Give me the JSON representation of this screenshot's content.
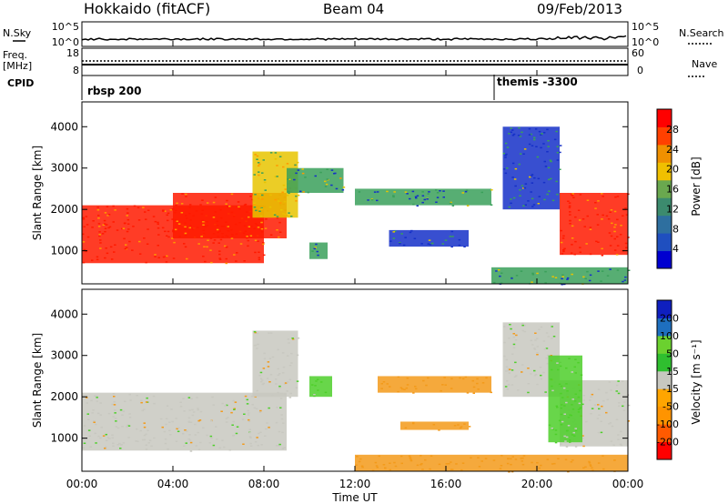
{
  "header": {
    "station": "Hokkaido (fitACF)",
    "beam": "Beam 04",
    "date": "09/Feb/2013"
  },
  "summary_panel": {
    "left_labels": {
      "nsky": "N.Sky",
      "freq": "Freq.",
      "freq_unit": "[MHz]",
      "cpid": "CPID"
    },
    "right_labels": {
      "nsearch": "N.Search",
      "nave": "Nave"
    },
    "left_ticks_top": [
      "10^5",
      "10^0"
    ],
    "left_ticks_freq": [
      "18",
      "8"
    ],
    "right_ticks_top": [
      "10^5",
      "10^0"
    ],
    "right_ticks_nave": [
      "60",
      "0"
    ],
    "cpid_segments": [
      {
        "label": "rbsp 200",
        "start_hour": 0.0
      },
      {
        "label": "themis -3300",
        "start_hour": 18.1
      }
    ]
  },
  "colorbars": {
    "power": {
      "label": "Power [dB]",
      "ticks": [
        "28",
        "24",
        "20",
        "16",
        "12",
        "8",
        "4"
      ],
      "colors": [
        "#0000d0",
        "#1f4fbf",
        "#2e6f9f",
        "#3c8b6e",
        "#6aa84f",
        "#f0c000",
        "#f09000",
        "#ff4000",
        "#ff0000"
      ]
    },
    "velocity": {
      "label": "Velocity [m s⁻¹]",
      "ticks": [
        "200",
        "100",
        "50",
        "15",
        "-15",
        "-50",
        "-100",
        "-200"
      ],
      "colors": [
        "#ff0000",
        "#ff5a00",
        "#ff9400",
        "#ffa500",
        "#c8c8c0",
        "#2fbf2f",
        "#6bd12f",
        "#1e6fbf",
        "#0f1fbf"
      ]
    }
  },
  "colors": {
    "power_red": "#ff1a00",
    "power_orange": "#ff9a00",
    "power_yellow": "#e8c400",
    "power_green": "#3aa05a",
    "power_blue": "#1530c8",
    "vel_grey": "#c8c8c0",
    "vel_orange": "#f39a1a",
    "vel_green": "#4ecf2a",
    "vel_blue": "#2040c0"
  },
  "chart_data": [
    {
      "type": "heatmap",
      "title": "",
      "xlabel": "",
      "ylabel": "Slant Range [km]",
      "xlim": [
        0,
        24
      ],
      "ylim": [
        200,
        4600
      ],
      "x_ticks": [],
      "y_ticks": [
        "1000",
        "2000",
        "3000",
        "4000"
      ],
      "quantity": "Power [dB]",
      "regions": [
        {
          "t0": 0.0,
          "t1": 8.0,
          "r0": 700,
          "r1": 2100,
          "value": 28
        },
        {
          "t0": 4.0,
          "t1": 9.0,
          "r0": 1300,
          "r1": 2400,
          "value": 26
        },
        {
          "t0": 7.5,
          "t1": 9.5,
          "r0": 1800,
          "r1": 3400,
          "value": 16
        },
        {
          "t0": 9.0,
          "t1": 11.5,
          "r0": 2400,
          "r1": 3000,
          "value": 12
        },
        {
          "t0": 10.0,
          "t1": 10.8,
          "r0": 800,
          "r1": 1200,
          "value": 10
        },
        {
          "t0": 12.0,
          "t1": 18.0,
          "r0": 2100,
          "r1": 2500,
          "value": 10
        },
        {
          "t0": 13.5,
          "t1": 17.0,
          "r0": 1100,
          "r1": 1500,
          "value": 8
        },
        {
          "t0": 18.5,
          "t1": 21.0,
          "r0": 2000,
          "r1": 4000,
          "value": 8
        },
        {
          "t0": 21.0,
          "t1": 24.0,
          "r0": 900,
          "r1": 2400,
          "value": 28
        },
        {
          "t0": 18.0,
          "t1": 24.0,
          "r0": 200,
          "r1": 600,
          "value": 10
        }
      ]
    },
    {
      "type": "heatmap",
      "title": "",
      "xlabel": "Time UT",
      "ylabel": "Slant Range [km]",
      "xlim": [
        0,
        24
      ],
      "ylim": [
        200,
        4600
      ],
      "x_ticks": [
        "00:00",
        "04:00",
        "08:00",
        "12:00",
        "16:00",
        "20:00",
        "00:00"
      ],
      "y_ticks": [
        "1000",
        "2000",
        "3000",
        "4000"
      ],
      "quantity": "Velocity [m s⁻¹]",
      "regions": [
        {
          "t0": 0.0,
          "t1": 9.0,
          "r0": 700,
          "r1": 2100,
          "value": 0
        },
        {
          "t0": 7.5,
          "t1": 9.5,
          "r0": 2000,
          "r1": 3600,
          "value": 0
        },
        {
          "t0": 10.0,
          "t1": 11.0,
          "r0": 2000,
          "r1": 2500,
          "value": 30
        },
        {
          "t0": 13.0,
          "t1": 18.0,
          "r0": 2100,
          "r1": 2500,
          "value": -60
        },
        {
          "t0": 14.0,
          "t1": 17.0,
          "r0": 1200,
          "r1": 1400,
          "value": -60
        },
        {
          "t0": 18.5,
          "t1": 21.0,
          "r0": 2000,
          "r1": 3800,
          "value": 0
        },
        {
          "t0": 21.0,
          "t1": 24.0,
          "r0": 800,
          "r1": 2400,
          "value": 0
        },
        {
          "t0": 20.5,
          "t1": 22.0,
          "r0": 900,
          "r1": 3000,
          "value": 30
        },
        {
          "t0": 12.0,
          "t1": 24.0,
          "r0": 200,
          "r1": 600,
          "value": -40
        }
      ]
    }
  ]
}
